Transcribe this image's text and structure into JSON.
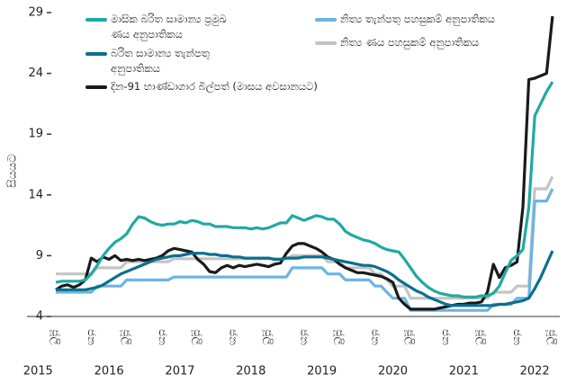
{
  "chart_data": {
    "type": "line",
    "y_label": "සියයට",
    "categories": [
      "ජූලි",
      null,
      null,
      null,
      null,
      null,
      "ජන",
      null,
      null,
      null,
      null,
      null,
      "ජූලි",
      null,
      null,
      null,
      null,
      null,
      "ජන",
      null,
      null,
      null,
      null,
      null,
      "ජූලි",
      null,
      null,
      null,
      null,
      null,
      "ජන",
      null,
      null,
      null,
      null,
      null,
      "ජූලි",
      null,
      null,
      null,
      null,
      null,
      "ජන",
      null,
      null,
      null,
      null,
      null,
      "ජූලි",
      null,
      null,
      null,
      null,
      null,
      "ජන",
      null,
      null,
      null,
      null,
      null,
      "ජූලි",
      null,
      null,
      null,
      null,
      null,
      "ජන",
      null,
      null,
      null,
      null,
      null,
      "ජූලි",
      null,
      null,
      null,
      null,
      null,
      "ජන",
      null,
      null,
      null,
      null,
      null,
      "ජූලි"
    ],
    "year_labels": [
      "2015",
      "2016",
      "2017",
      "2018",
      "2019",
      "2020",
      "2021",
      "2022"
    ],
    "ylim": [
      4,
      29
    ],
    "yticks": [
      4,
      9,
      14,
      19,
      24,
      29
    ],
    "series": [
      {
        "name": "මාසික බරිත සාමාන්‍ය ප්‍රමුඛ ණය අනුපාතිකය",
        "color": "#20a9a3",
        "values": [
          6.8,
          6.9,
          6.9,
          6.9,
          6.9,
          7.0,
          7.5,
          8.2,
          9.0,
          9.6,
          10.1,
          10.4,
          10.8,
          11.6,
          12.2,
          12.1,
          11.8,
          11.6,
          11.5,
          11.6,
          11.6,
          11.8,
          11.7,
          11.9,
          11.8,
          11.6,
          11.6,
          11.4,
          11.4,
          11.4,
          11.3,
          11.3,
          11.3,
          11.2,
          11.3,
          11.2,
          11.3,
          11.5,
          11.7,
          11.7,
          12.3,
          12.1,
          11.9,
          12.1,
          12.3,
          12.2,
          12.0,
          12.0,
          11.6,
          11.0,
          10.7,
          10.5,
          10.3,
          10.2,
          10.0,
          9.7,
          9.5,
          9.4,
          9.3,
          8.7,
          8.0,
          7.3,
          6.8,
          6.4,
          6.1,
          5.9,
          5.8,
          5.7,
          5.7,
          5.6,
          5.6,
          5.6,
          5.7,
          5.7,
          5.9,
          6.5,
          7.6,
          8.6,
          9.0,
          9.5,
          13.0,
          20.5,
          21.5,
          22.5,
          23.3
        ]
      },
      {
        "name": "බරිත සාමාන්‍ය තැන්පතු අනුපාතිකය",
        "color": "#0b6f8e",
        "values": [
          6.2,
          6.2,
          6.2,
          6.2,
          6.2,
          6.2,
          6.3,
          6.4,
          6.6,
          6.9,
          7.2,
          7.5,
          7.7,
          7.9,
          8.1,
          8.3,
          8.5,
          8.7,
          8.8,
          8.9,
          9.0,
          9.0,
          9.1,
          9.2,
          9.2,
          9.2,
          9.1,
          9.1,
          9.0,
          9.0,
          8.9,
          8.9,
          8.8,
          8.8,
          8.8,
          8.8,
          8.8,
          8.7,
          8.7,
          8.8,
          8.8,
          8.8,
          8.9,
          8.9,
          8.9,
          8.9,
          8.8,
          8.7,
          8.6,
          8.5,
          8.4,
          8.3,
          8.2,
          8.2,
          8.1,
          7.9,
          7.7,
          7.4,
          7.0,
          6.7,
          6.4,
          6.1,
          5.9,
          5.6,
          5.4,
          5.2,
          5.0,
          4.9,
          4.9,
          4.9,
          4.9,
          4.9,
          4.9,
          4.9,
          4.9,
          5.0,
          5.0,
          5.1,
          5.2,
          5.3,
          5.5,
          6.3,
          7.2,
          8.3,
          9.4
        ]
      },
      {
        "name": "දින-91 භාණ්ඩාගාර බිල්පත් (මාසය අවසානයට)",
        "color": "#1a1a1a",
        "values": [
          6.2,
          6.5,
          6.6,
          6.4,
          6.6,
          7.0,
          8.8,
          8.5,
          8.9,
          8.7,
          9.0,
          8.6,
          8.7,
          8.6,
          8.7,
          8.6,
          8.7,
          8.8,
          9.0,
          9.4,
          9.6,
          9.5,
          9.4,
          9.3,
          8.7,
          8.3,
          7.7,
          7.6,
          8.0,
          8.2,
          8.0,
          8.2,
          8.1,
          8.2,
          8.3,
          8.2,
          8.1,
          8.3,
          8.4,
          9.2,
          9.8,
          10.0,
          10.0,
          9.8,
          9.6,
          9.3,
          8.9,
          8.7,
          8.3,
          8.0,
          7.8,
          7.6,
          7.6,
          7.5,
          7.4,
          7.3,
          7.1,
          6.8,
          5.5,
          5.0,
          4.6,
          4.6,
          4.6,
          4.6,
          4.6,
          4.7,
          4.8,
          4.9,
          5.0,
          5.0,
          5.1,
          5.1,
          5.2,
          6.0,
          8.3,
          7.2,
          8.0,
          8.2,
          8.5,
          13.0,
          23.5,
          23.6,
          23.8,
          24.0,
          28.7
        ]
      },
      {
        "name": "නිත්‍ය තැන්පතු පහසුකම් අනුපාතිකය",
        "color": "#6cb4e4",
        "values": [
          6,
          6,
          6,
          6,
          6,
          6,
          6,
          6.5,
          6.5,
          6.5,
          6.5,
          6.5,
          7,
          7,
          7,
          7,
          7,
          7,
          7,
          7,
          7.25,
          7.25,
          7.25,
          7.25,
          7.25,
          7.25,
          7.25,
          7.25,
          7.25,
          7.25,
          7.25,
          7.25,
          7.25,
          7.25,
          7.25,
          7.25,
          7.25,
          7.25,
          7.25,
          7.25,
          8,
          8,
          8,
          8,
          8,
          8,
          7.5,
          7.5,
          7.5,
          7,
          7,
          7,
          7,
          7,
          6.5,
          6.5,
          6,
          5.5,
          5.5,
          5.5,
          4.5,
          4.5,
          4.5,
          4.5,
          4.5,
          4.5,
          4.5,
          4.5,
          4.5,
          4.5,
          4.5,
          4.5,
          4.5,
          4.5,
          5,
          5,
          5,
          5,
          5.5,
          5.5,
          5.5,
          13.5,
          13.5,
          13.5,
          14.5
        ]
      },
      {
        "name": "නිත්‍ය ණය පහසුකම් අනුපාතිකය",
        "color": "#c4c4c4",
        "values": [
          7.5,
          7.5,
          7.5,
          7.5,
          7.5,
          7.5,
          7.5,
          8,
          8,
          8,
          8,
          8,
          8.5,
          8.5,
          8.5,
          8.5,
          8.5,
          8.5,
          8.5,
          8.5,
          8.75,
          8.75,
          8.75,
          8.75,
          8.75,
          8.75,
          8.75,
          8.75,
          8.75,
          8.75,
          8.75,
          8.75,
          8.75,
          8.75,
          8.75,
          8.75,
          8.75,
          8.75,
          8.75,
          8.75,
          9,
          9,
          9,
          9,
          9,
          9,
          8.5,
          8.5,
          8.5,
          8,
          8,
          8,
          8,
          8,
          7.5,
          7.5,
          7,
          6.5,
          6.5,
          6.5,
          5.5,
          5.5,
          5.5,
          5.5,
          5.5,
          5.5,
          5.5,
          5.5,
          5.5,
          5.5,
          5.5,
          5.5,
          5.5,
          5.5,
          6,
          6,
          6,
          6,
          6.5,
          6.5,
          6.5,
          14.5,
          14.5,
          14.5,
          15.5
        ]
      }
    ]
  }
}
